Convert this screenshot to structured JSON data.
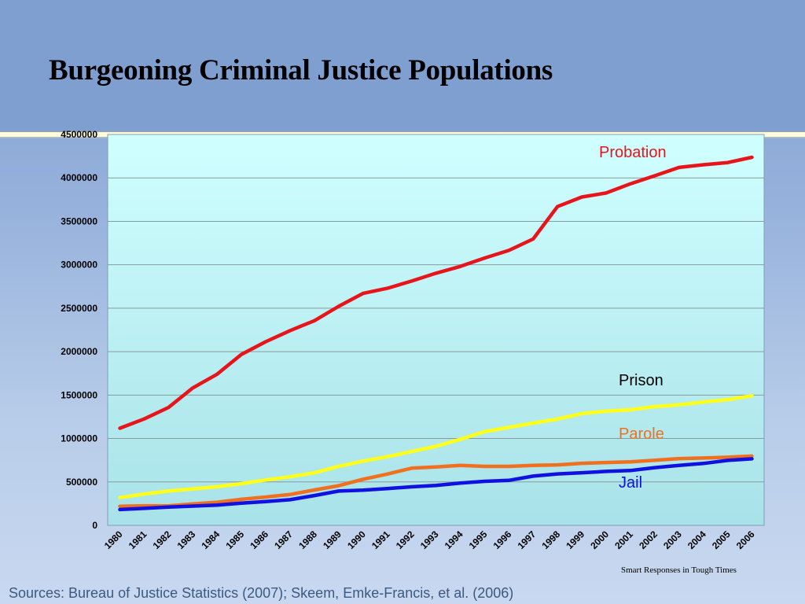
{
  "slide": {
    "title": "Burgeoning Criminal Justice Populations",
    "footer_right": "Smart Responses in Tough Times",
    "sources": "Sources: Bureau of Justice Statistics (2007);  Skeem, Emke-Francis, et al. (2006)"
  },
  "chart_data": {
    "type": "line",
    "x": [
      "1980",
      "1981",
      "1982",
      "1983",
      "1984",
      "1985",
      "1986",
      "1987",
      "1988",
      "1989",
      "1990",
      "1991",
      "1992",
      "1993",
      "1994",
      "1995",
      "1996",
      "1997",
      "1998",
      "1999",
      "2000",
      "2001",
      "2002",
      "2003",
      "2004",
      "2005",
      "2006"
    ],
    "ylim": [
      0,
      4500000
    ],
    "yticks": [
      0,
      500000,
      1000000,
      1500000,
      2000000,
      2500000,
      3000000,
      3500000,
      4000000,
      4500000
    ],
    "grid": true,
    "series": [
      {
        "name": "Probation",
        "color": "#e8141b",
        "values": [
          1118000,
          1225000,
          1357000,
          1582000,
          1740000,
          1968000,
          2114000,
          2242000,
          2356000,
          2522000,
          2670000,
          2729000,
          2812000,
          2903000,
          2981000,
          3078000,
          3165000,
          3297000,
          3670000,
          3780000,
          3826000,
          3932000,
          4025000,
          4121000,
          4151000,
          4177000,
          4237000
        ]
      },
      {
        "name": "Prison",
        "color": "#ffff1a",
        "values": [
          320000,
          360000,
          395000,
          420000,
          445000,
          480000,
          522000,
          560000,
          605000,
          680000,
          740000,
          790000,
          850000,
          910000,
          990000,
          1078000,
          1128000,
          1177000,
          1224000,
          1287000,
          1316000,
          1331000,
          1367000,
          1388000,
          1420000,
          1448000,
          1492000
        ]
      },
      {
        "name": "Parole",
        "color": "#f07020",
        "values": [
          220000,
          225000,
          224000,
          246000,
          266000,
          300000,
          326000,
          355000,
          407000,
          456000,
          531000,
          590000,
          658000,
          672000,
          690000,
          679000,
          679000,
          690000,
          696000,
          714000,
          723000,
          732000,
          750000,
          769000,
          775000,
          784000,
          798000
        ]
      },
      {
        "name": "Jail",
        "color": "#1010e0",
        "values": [
          182000,
          196000,
          210000,
          222000,
          234000,
          256000,
          274000,
          295000,
          343000,
          395000,
          405000,
          424000,
          444000,
          459000,
          486000,
          507000,
          518000,
          567000,
          592000,
          606000,
          621000,
          631000,
          665000,
          691000,
          713000,
          748000,
          766000
        ]
      }
    ]
  }
}
